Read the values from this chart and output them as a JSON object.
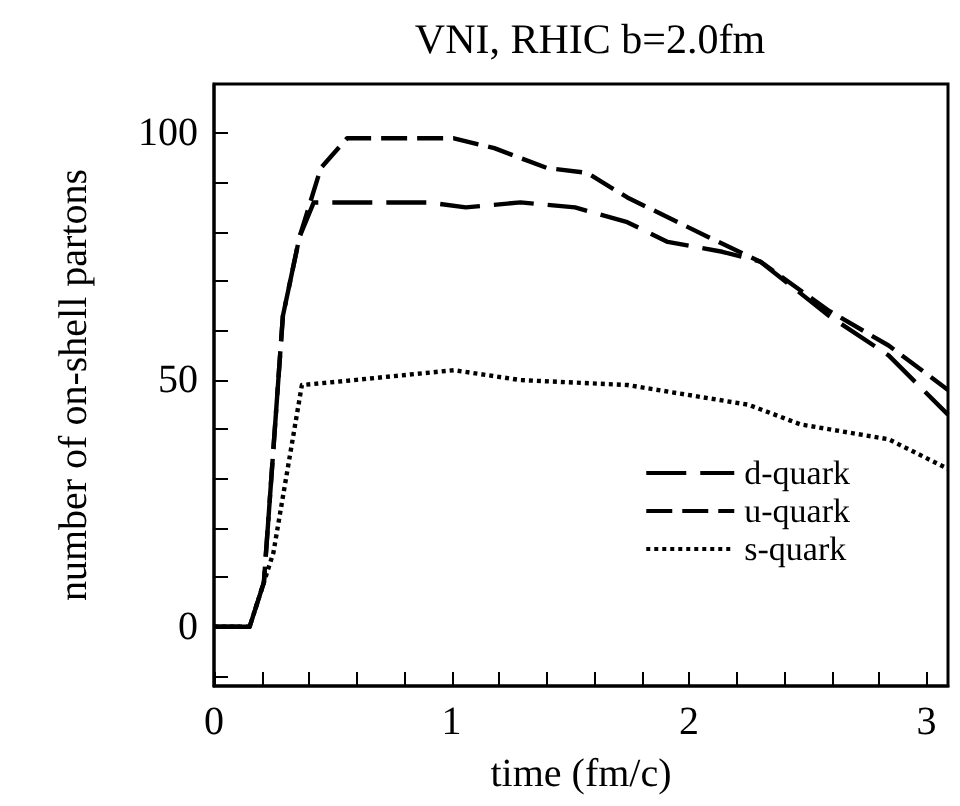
{
  "chart_data": {
    "type": "line",
    "title": "VNI, RHIC b=2.0fm",
    "xlabel": "time (fm/c)",
    "ylabel": "number of on-shell partons",
    "xlim": [
      0,
      3.09
    ],
    "ylim": [
      -12,
      110
    ],
    "xticks": [
      0,
      {
        "value": 0.2,
        "label": null
      },
      {
        "value": 0.4,
        "label": null
      },
      {
        "value": 0.6,
        "label": null
      },
      {
        "value": 0.8,
        "label": null
      },
      1,
      {
        "value": 1.2,
        "label": null
      },
      {
        "value": 1.4,
        "label": null
      },
      {
        "value": 1.6,
        "label": null
      },
      {
        "value": 1.8,
        "label": null
      },
      2,
      {
        "value": 2.2,
        "label": null
      },
      {
        "value": 2.4,
        "label": null
      },
      {
        "value": 2.6,
        "label": null
      },
      {
        "value": 2.8,
        "label": null
      },
      3
    ],
    "yticks": [
      {
        "value": -10,
        "label": null
      },
      0,
      {
        "value": 10,
        "label": null
      },
      {
        "value": 20,
        "label": null
      },
      {
        "value": 30,
        "label": null
      },
      {
        "value": 40,
        "label": null
      },
      50,
      {
        "value": 60,
        "label": null
      },
      {
        "value": 70,
        "label": null
      },
      {
        "value": 80,
        "label": null
      },
      {
        "value": 90,
        "label": null
      },
      100
    ],
    "legend": "bottom right",
    "grid": false,
    "marker": "none",
    "series": [
      {
        "name": "d-quark",
        "color": "#000000",
        "line_style": "dashed",
        "x": [
          0,
          0.15,
          0.21,
          0.29,
          0.36,
          0.42,
          0.9,
          1.06,
          1.29,
          1.52,
          1.74,
          1.91,
          2.14,
          2.3,
          2.59,
          2.84,
          3.09
        ],
        "values": [
          0,
          0,
          9,
          63,
          79,
          86,
          86,
          85,
          86,
          85,
          82,
          78,
          76,
          74,
          63,
          55,
          43
        ]
      },
      {
        "name": "u-quark",
        "color": "#000000",
        "line_style": "dashed",
        "x": [
          0,
          0.15,
          0.21,
          0.29,
          0.36,
          0.45,
          0.56,
          1.01,
          1.18,
          1.4,
          1.57,
          1.74,
          2.08,
          2.3,
          2.59,
          2.84,
          3.09
        ],
        "values": [
          0,
          0,
          9,
          63,
          79,
          93,
          99,
          99,
          97,
          93,
          92,
          87,
          79,
          74,
          64,
          57,
          48
        ]
      },
      {
        "name": "s-quark",
        "color": "#000000",
        "line_style": "dotted",
        "x": [
          0,
          0.15,
          0.25,
          0.37,
          0.59,
          1.01,
          1.29,
          1.74,
          2.25,
          2.47,
          2.84,
          3.09
        ],
        "values": [
          0,
          0,
          15,
          49,
          50,
          52,
          50,
          49,
          45,
          41,
          38,
          32
        ]
      }
    ]
  }
}
